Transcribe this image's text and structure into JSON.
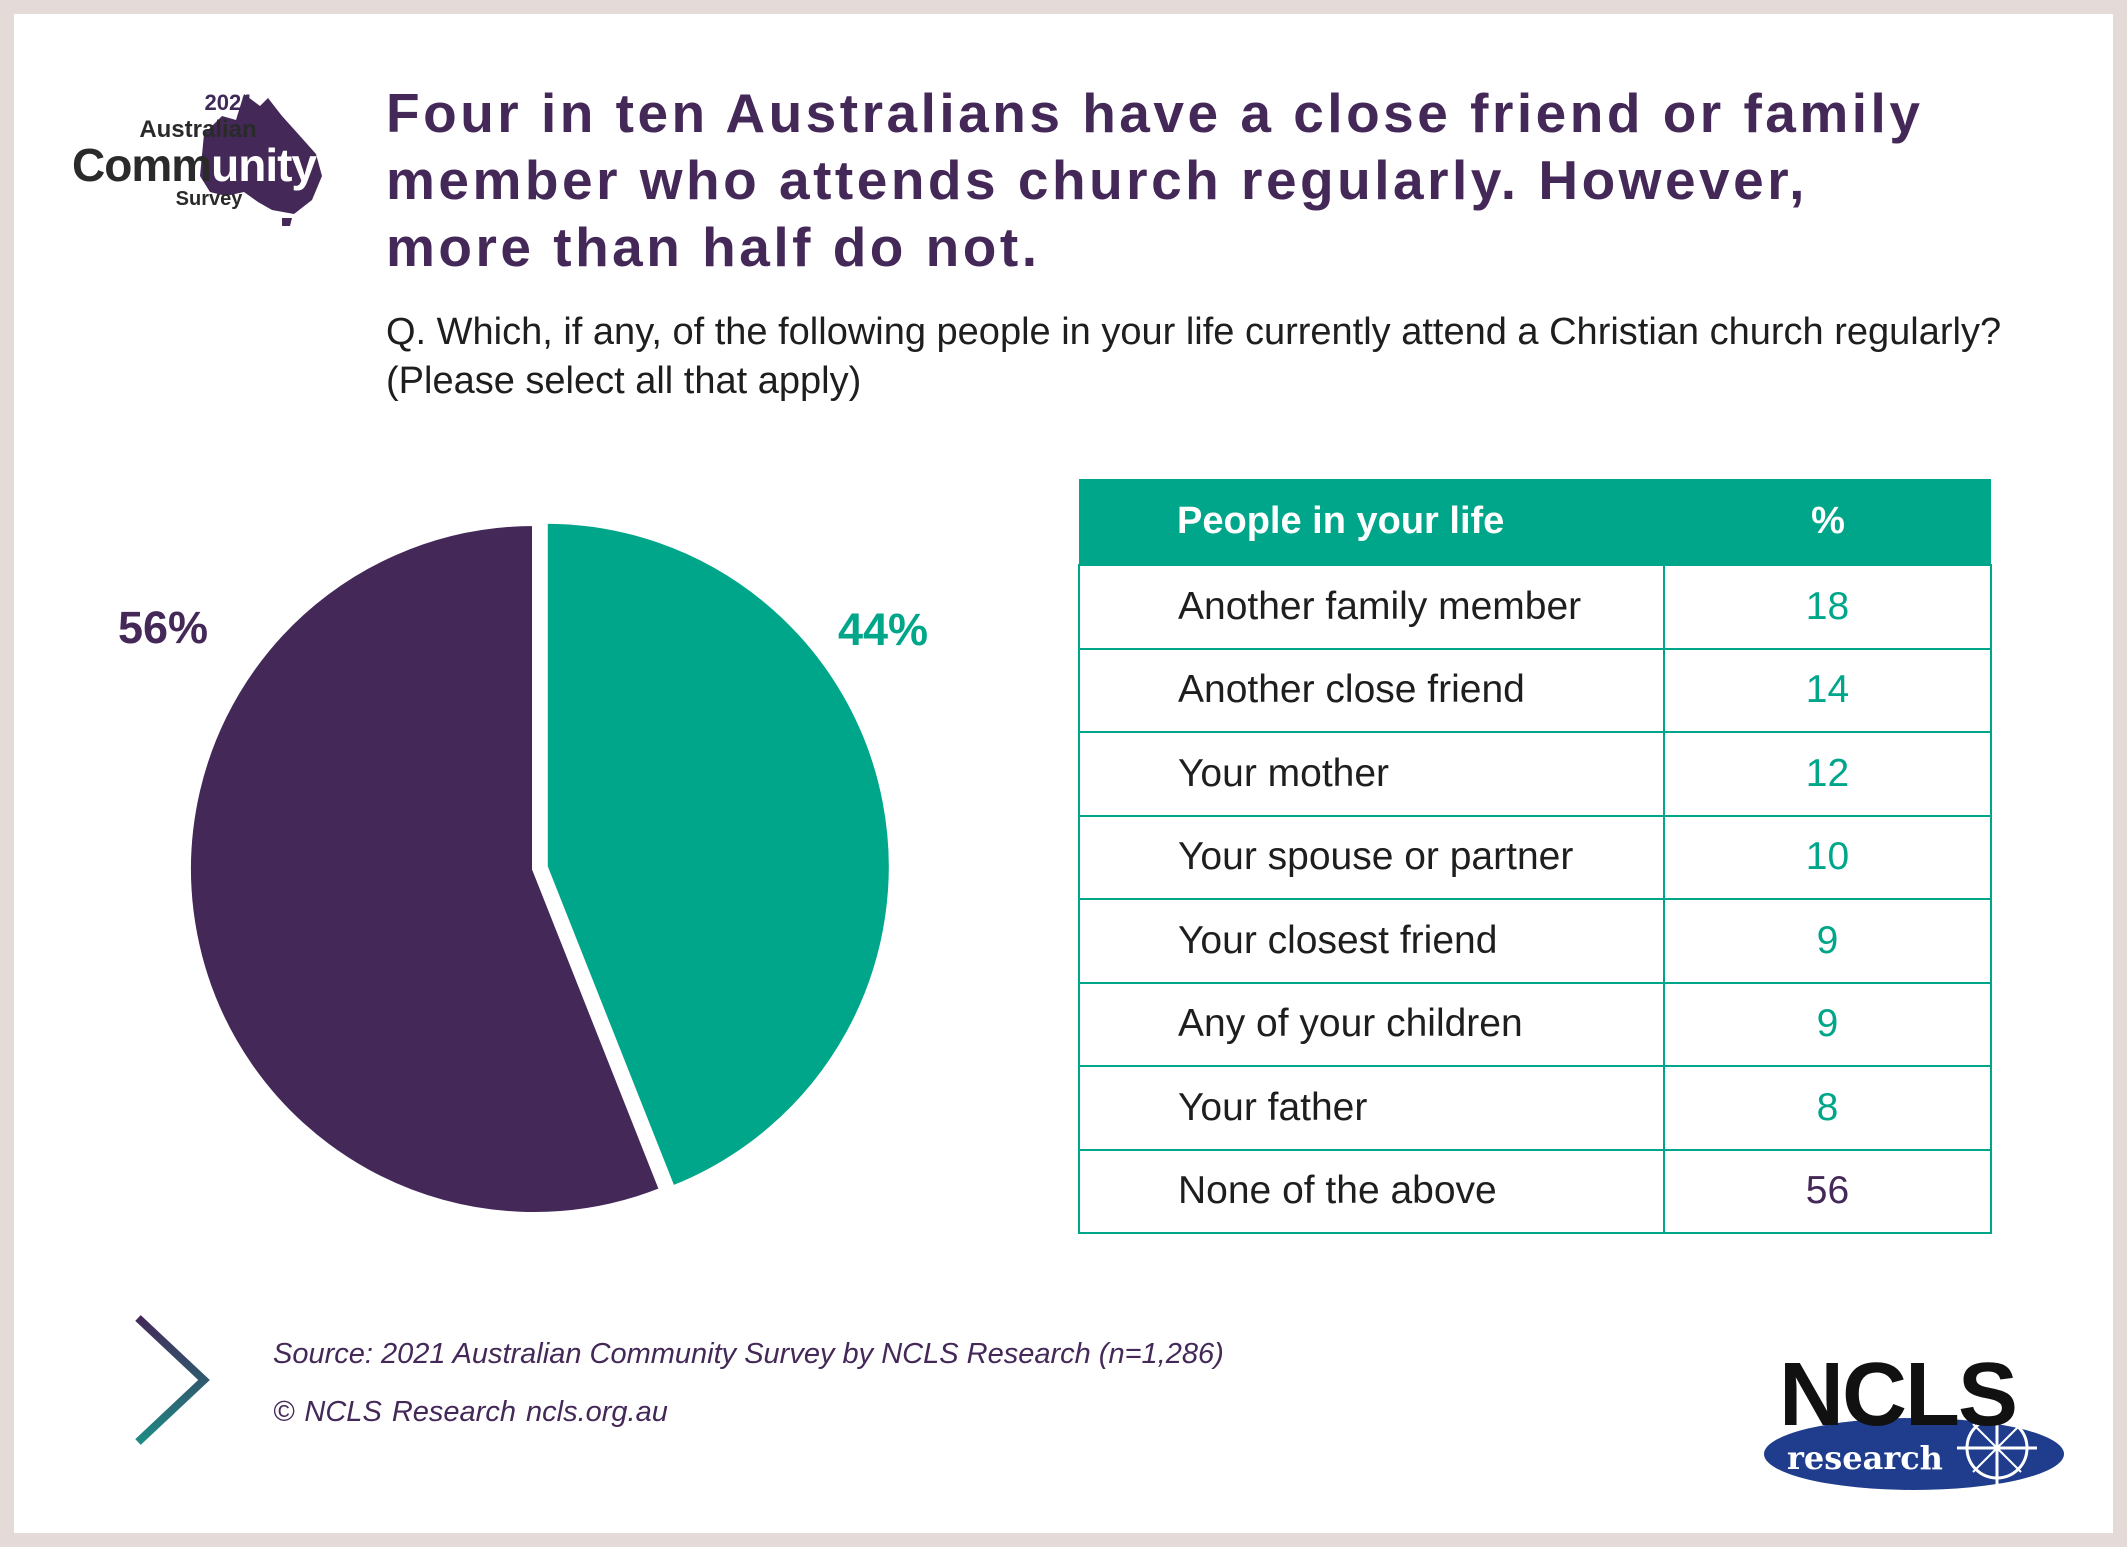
{
  "logo": {
    "year": "2021",
    "line1": "Australian",
    "word_a": "Comm",
    "word_b": "unity",
    "line3": "Survey"
  },
  "title": "Four in ten Australians have a close friend or family member who attends church regularly. However, more than half do not.",
  "question": "Q. Which, if any, of the following people in your life currently attend a Christian church regularly? (Please select all that apply)",
  "colors": {
    "purple": "#432858",
    "teal": "#00a68a"
  },
  "chart_data": [
    {
      "type": "pie",
      "slices": [
        {
          "label": "44%",
          "value": 44,
          "color": "#00a68a",
          "exploded": true
        },
        {
          "label": "56%",
          "value": 56,
          "color": "#432858",
          "exploded": false
        }
      ]
    },
    {
      "type": "table",
      "columns": [
        "People in your life",
        "%"
      ],
      "rows": [
        [
          "Another family member",
          "18"
        ],
        [
          "Another close friend",
          "14"
        ],
        [
          "Your mother",
          "12"
        ],
        [
          "Your spouse or partner",
          "10"
        ],
        [
          "Your closest friend",
          "9"
        ],
        [
          "Any of your children",
          "9"
        ],
        [
          "Your father",
          "8"
        ],
        [
          "None of the above",
          "56"
        ]
      ]
    }
  ],
  "footer": {
    "source": "Source: 2021 Australian Community Survey by NCLS Research (n=1,286)",
    "copyright": "© NCLS Research   ncls.org.au",
    "brand": "NCLS",
    "brand_sub": "research",
    "arrow_icon": "chevron-right-icon"
  }
}
